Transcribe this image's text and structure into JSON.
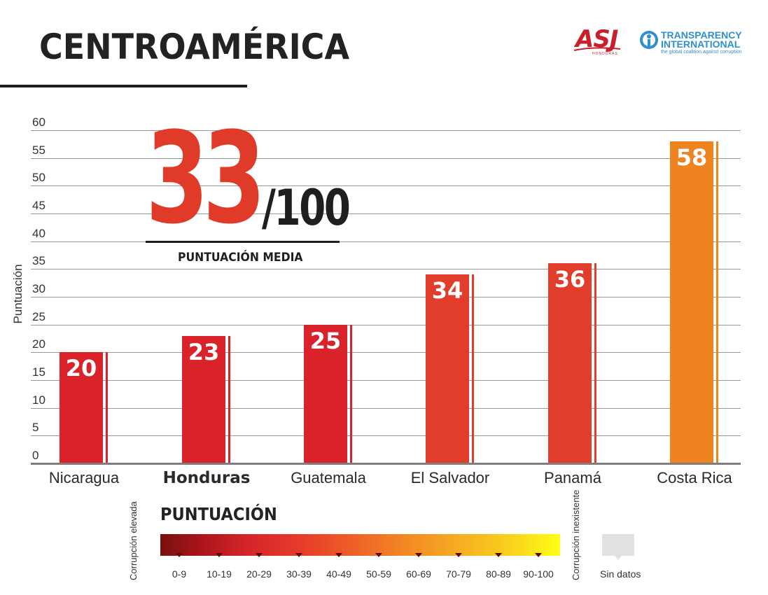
{
  "header": {
    "title": "CENTROAMÉRICA",
    "logo_asj": "ASJ",
    "logo_asj_sub": "HONDURAS",
    "logo_ti_line1": "TRANSPARENCY",
    "logo_ti_line2": "INTERNATIONAL",
    "logo_ti_tagline": "the global coalition against corruption"
  },
  "average": {
    "value": "33",
    "denominator": "/100",
    "label": "PUNTUACIÓN MEDIA"
  },
  "colors": {
    "bar_dark_red": "#d92229",
    "bar_red": "#e23c2a",
    "bar_orange": "#ee8320",
    "accent_red": "#e03a28"
  },
  "chart_data": {
    "type": "bar",
    "ylabel": "Puntuación",
    "ylim": [
      0,
      60
    ],
    "yticks": [
      "0",
      "5",
      "10",
      "15",
      "20",
      "25",
      "30",
      "35",
      "40",
      "45",
      "50",
      "55",
      "60"
    ],
    "grid": true,
    "categories": [
      "Nicaragua",
      "Honduras",
      "Guatemala",
      "El Salvador",
      "Panamá",
      "Costa Rica"
    ],
    "values": [
      20,
      23,
      25,
      34,
      36,
      58
    ],
    "value_labels": [
      "20",
      "23",
      "25",
      "34",
      "36",
      "58"
    ],
    "highlighted_category": "Honduras"
  },
  "legend": {
    "title": "PUNTUACIÓN",
    "left_label": "Corrupción elevada",
    "right_label": "Corrupción inexistente",
    "ranges": [
      "0-9",
      "10-19",
      "20-29",
      "30-39",
      "40-49",
      "50-59",
      "60-69",
      "70-79",
      "80-89",
      "90-100"
    ],
    "no_data_label": "Sin datos"
  }
}
